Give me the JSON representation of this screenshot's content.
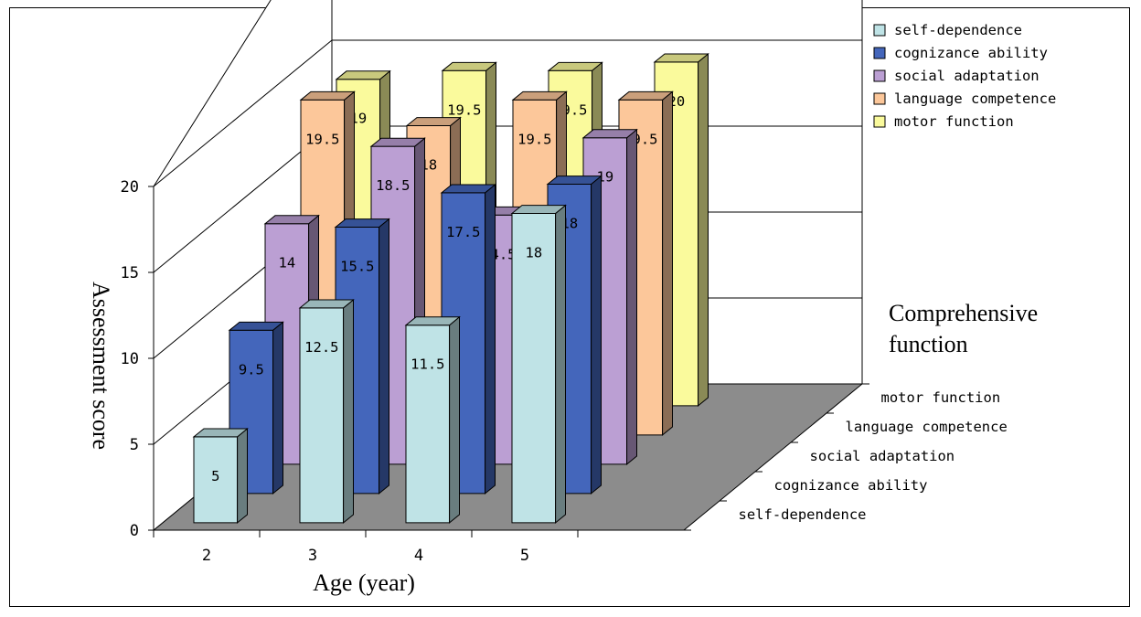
{
  "chart_data": {
    "type": "bar",
    "title": "",
    "xlabel": "Age (year)",
    "ylabel": "Assessment score",
    "zlabel": "Comprehensive function",
    "categories": [
      "2",
      "3",
      "4",
      "5"
    ],
    "yticks": [
      "0",
      "5",
      "10",
      "15",
      "20"
    ],
    "ylim": [
      0,
      20
    ],
    "legend_position": "top-right",
    "series": [
      {
        "name": "self-dependence",
        "values": [
          5,
          12.5,
          11.5,
          18
        ],
        "labels": [
          "5",
          "12.5",
          "11.5",
          "18"
        ],
        "color": "#bfe3e6"
      },
      {
        "name": "cognizance ability",
        "values": [
          9.5,
          15.5,
          17.5,
          18
        ],
        "labels": [
          "9.5",
          "15.5",
          "17.5",
          "18"
        ],
        "color": "#4466bb"
      },
      {
        "name": "social adaptation",
        "values": [
          14,
          18.5,
          14.5,
          19
        ],
        "labels": [
          "14",
          "18.5",
          "14.5",
          "19"
        ],
        "color": "#bb9fd3"
      },
      {
        "name": "language competence",
        "values": [
          19.5,
          18,
          19.5,
          19.5
        ],
        "labels": [
          "19.5",
          "18",
          "19.5",
          "19.5"
        ],
        "color": "#fcc79a"
      },
      {
        "name": "motor function",
        "values": [
          19,
          19.5,
          19.5,
          20
        ],
        "labels": [
          "19",
          "19.5",
          "19.5",
          "20"
        ],
        "color": "#fafa9c"
      }
    ]
  }
}
